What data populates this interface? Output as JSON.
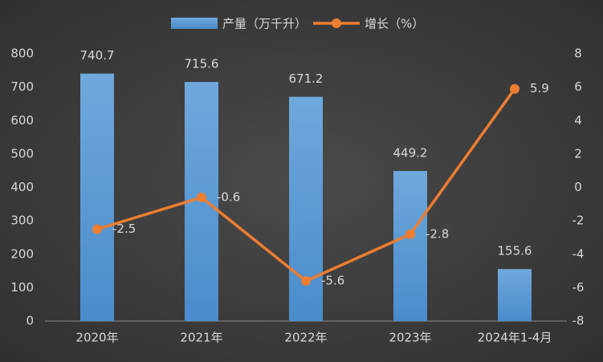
{
  "chart_data": {
    "type": "bar",
    "categories": [
      "2020年",
      "2021年",
      "2022年",
      "2023年",
      "2024年1-4月"
    ],
    "series": [
      {
        "name": "产量（万千升）",
        "type": "bar",
        "color": "#5b9bd5",
        "values": [
          740.7,
          715.6,
          671.2,
          449.2,
          155.6
        ]
      },
      {
        "name": "增长（%）",
        "type": "line",
        "axis": "y2",
        "color": "#ed7d31",
        "values": [
          -2.5,
          -0.6,
          -5.6,
          -2.8,
          5.9
        ]
      }
    ],
    "ylim": [
      0,
      800
    ],
    "yticks": [
      0,
      100,
      200,
      300,
      400,
      500,
      600,
      700,
      800
    ],
    "y2lim": [
      -8,
      8
    ],
    "y2ticks": [
      -8,
      -6,
      -4,
      -2,
      0,
      2,
      4,
      6,
      8
    ],
    "grid": false,
    "legend": "top"
  }
}
